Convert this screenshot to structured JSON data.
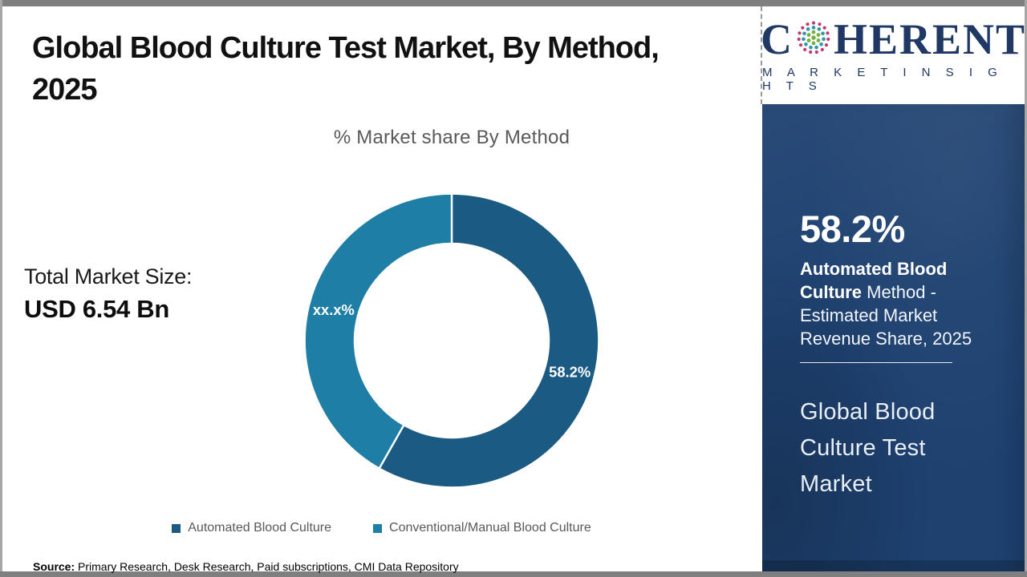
{
  "header": {
    "title_line1": "Global Blood Culture Test Market, By Method,",
    "title_line2": "2025"
  },
  "chart_data": {
    "type": "pie",
    "subtype": "donut",
    "title": "% Market share By Method",
    "segments": [
      {
        "label": "Automated Blood Culture",
        "value": 58.2,
        "display": "58.2%",
        "color": "#1b5a83"
      },
      {
        "label": "Conventional/Manual Blood Culture",
        "value": 41.8,
        "display": "xx.x%",
        "color": "#1e7ea6"
      }
    ],
    "start_angle_deg": 0,
    "direction": "clockwise",
    "inner_radius_ratio": 0.66,
    "legend_position": "bottom",
    "labels_on_slices": true
  },
  "total_market": {
    "label": "Total Market Size:",
    "value": "USD 6.54 Bn"
  },
  "footer": {
    "source_label": "Source:",
    "source_text": " Primary Research, Desk Research, Paid subscriptions, CMI Data Repository"
  },
  "sidebar": {
    "logo": {
      "brand_prefix": "C",
      "brand_suffix": "HERENT",
      "brand_subtitle": "M A R K E T   I N S I G H T S",
      "navy": "#1f3864",
      "globe_colors": {
        "inner": "#76b043",
        "middle": "#2e96ad",
        "outer": "#c2356f"
      }
    },
    "stat": {
      "value": "58.2%",
      "label_bold": "Automated Blood Culture",
      "label_rest": " Method - Estimated Market Revenue Share, 2025"
    },
    "panel_title": "Global Blood Culture Test Market",
    "panel_color": "#1e4170"
  }
}
